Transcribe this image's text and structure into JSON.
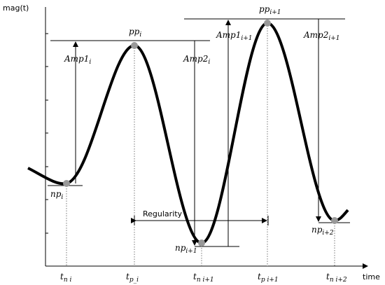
{
  "axes": {
    "y_label": "mag(t)",
    "x_label": "time"
  },
  "peaks": [
    {
      "base": "pp",
      "sub": "i"
    },
    {
      "base": "pp",
      "sub": "i+1"
    }
  ],
  "valleys": [
    {
      "base": "np",
      "sub": "i"
    },
    {
      "base": "np",
      "sub": "i+1"
    },
    {
      "base": "np",
      "sub": "i+2"
    }
  ],
  "amplitudes": [
    {
      "base": "Amp1",
      "sub": "i"
    },
    {
      "base": "Amp2",
      "sub": "i"
    },
    {
      "base": "Amp1",
      "sub": "i+1"
    },
    {
      "base": "Amp2",
      "sub": "i+1"
    }
  ],
  "regularity": "Regularity",
  "time_marks": [
    {
      "base": "t",
      "sub": "n i"
    },
    {
      "base": "t",
      "sub": "p_i"
    },
    {
      "base": "t",
      "sub": "n i+1"
    },
    {
      "base": "t",
      "sub": "p i+1"
    },
    {
      "base": "t",
      "sub": "n i+2"
    }
  ]
}
